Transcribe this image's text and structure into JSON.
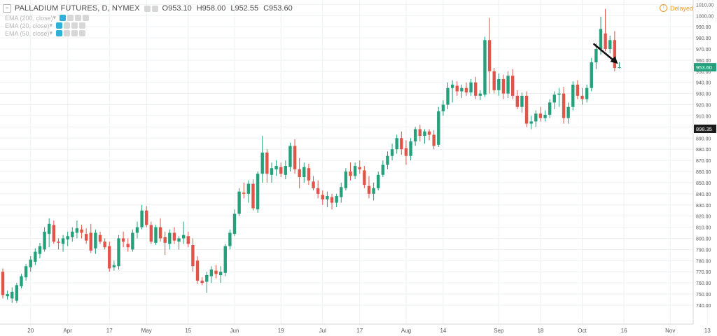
{
  "legend": {
    "collapse_icon": "minus-square-icon",
    "symbol": "PALLADIUM FUTURES, D, NYMEX",
    "open": "O953.10",
    "high": "H958.00",
    "low": "L952.55",
    "close": "C953.60",
    "indicators": [
      {
        "label": "EMA (200, close)"
      },
      {
        "label": "EMA (20, close)"
      },
      {
        "label": "EMA (50, close)"
      }
    ]
  },
  "status": {
    "delayed": "Delayed"
  },
  "colors": {
    "up": "#26a07a",
    "down": "#e0554a",
    "grid": "#eef0f2",
    "axis_text": "#595959",
    "last_price_bg": "#26a07a",
    "crosshair_bg": "#1c1c1c",
    "arrow": "#111111"
  },
  "chart_data": {
    "type": "candlestick",
    "title": "PALLADIUM FUTURES, D, NYMEX",
    "y_axis": {
      "min": 723,
      "max": 1014,
      "ticks": [
        740,
        750,
        760,
        770,
        780,
        790,
        800,
        810,
        820,
        830,
        840,
        850,
        860,
        870,
        880,
        890,
        900,
        910,
        920,
        930,
        940,
        950,
        960,
        970,
        980,
        990,
        1000,
        1010
      ],
      "side": "right"
    },
    "x_axis": {
      "ticks": [
        {
          "label": "20",
          "index": 6
        },
        {
          "label": "Apr",
          "index": 14
        },
        {
          "label": "17",
          "index": 23
        },
        {
          "label": "May",
          "index": 31
        },
        {
          "label": "15",
          "index": 40
        },
        {
          "label": "Jun",
          "index": 50
        },
        {
          "label": "19",
          "index": 60
        },
        {
          "label": "Jul",
          "index": 69
        },
        {
          "label": "17",
          "index": 77
        },
        {
          "label": "Aug",
          "index": 87
        },
        {
          "label": "14",
          "index": 95
        },
        {
          "label": "Sep",
          "index": 107
        },
        {
          "label": "18",
          "index": 116
        },
        {
          "label": "Oct",
          "index": 125
        },
        {
          "label": "16",
          "index": 134
        },
        {
          "label": "Nov",
          "index": 144
        },
        {
          "label": "13",
          "index": 152
        }
      ]
    },
    "last_price_label": "953.60",
    "crosshair_price_label": "898.35",
    "crosshair_price": 898.35,
    "annotation": {
      "type": "arrow",
      "points_to_index": 133,
      "description": "high point"
    },
    "candles": [
      {
        "o": 770,
        "h": 773,
        "l": 746,
        "c": 749
      },
      {
        "o": 748,
        "h": 753,
        "l": 745,
        "c": 750
      },
      {
        "o": 746,
        "h": 756,
        "l": 742,
        "c": 752
      },
      {
        "o": 744,
        "h": 760,
        "l": 742,
        "c": 758
      },
      {
        "o": 757,
        "h": 768,
        "l": 755,
        "c": 766
      },
      {
        "o": 765,
        "h": 777,
        "l": 762,
        "c": 775
      },
      {
        "o": 774,
        "h": 784,
        "l": 770,
        "c": 781
      },
      {
        "o": 779,
        "h": 791,
        "l": 776,
        "c": 788
      },
      {
        "o": 786,
        "h": 796,
        "l": 782,
        "c": 793
      },
      {
        "o": 790,
        "h": 810,
        "l": 788,
        "c": 806
      },
      {
        "o": 804,
        "h": 818,
        "l": 792,
        "c": 813
      },
      {
        "o": 812,
        "h": 816,
        "l": 795,
        "c": 797
      },
      {
        "o": 797,
        "h": 800,
        "l": 790,
        "c": 796
      },
      {
        "o": 795,
        "h": 803,
        "l": 788,
        "c": 800
      },
      {
        "o": 799,
        "h": 806,
        "l": 793,
        "c": 802
      },
      {
        "o": 801,
        "h": 810,
        "l": 797,
        "c": 806
      },
      {
        "o": 805,
        "h": 816,
        "l": 800,
        "c": 809
      },
      {
        "o": 808,
        "h": 812,
        "l": 800,
        "c": 805
      },
      {
        "o": 804,
        "h": 809,
        "l": 795,
        "c": 798
      },
      {
        "o": 805,
        "h": 813,
        "l": 787,
        "c": 789
      },
      {
        "o": 791,
        "h": 808,
        "l": 786,
        "c": 805
      },
      {
        "o": 803,
        "h": 806,
        "l": 795,
        "c": 797
      },
      {
        "o": 797,
        "h": 800,
        "l": 790,
        "c": 792
      },
      {
        "o": 793,
        "h": 797,
        "l": 770,
        "c": 773
      },
      {
        "o": 774,
        "h": 780,
        "l": 771,
        "c": 776
      },
      {
        "o": 775,
        "h": 803,
        "l": 772,
        "c": 800
      },
      {
        "o": 800,
        "h": 806,
        "l": 792,
        "c": 797
      },
      {
        "o": 795,
        "h": 800,
        "l": 788,
        "c": 792
      },
      {
        "o": 790,
        "h": 808,
        "l": 788,
        "c": 805
      },
      {
        "o": 805,
        "h": 815,
        "l": 800,
        "c": 810
      },
      {
        "o": 810,
        "h": 830,
        "l": 808,
        "c": 825
      },
      {
        "o": 825,
        "h": 829,
        "l": 810,
        "c": 812
      },
      {
        "o": 812,
        "h": 815,
        "l": 795,
        "c": 797
      },
      {
        "o": 796,
        "h": 812,
        "l": 794,
        "c": 810
      },
      {
        "o": 810,
        "h": 818,
        "l": 797,
        "c": 800
      },
      {
        "o": 801,
        "h": 806,
        "l": 785,
        "c": 796
      },
      {
        "o": 795,
        "h": 808,
        "l": 790,
        "c": 805
      },
      {
        "o": 805,
        "h": 810,
        "l": 795,
        "c": 798
      },
      {
        "o": 797,
        "h": 802,
        "l": 790,
        "c": 800
      },
      {
        "o": 800,
        "h": 815,
        "l": 795,
        "c": 803
      },
      {
        "o": 802,
        "h": 806,
        "l": 792,
        "c": 795
      },
      {
        "o": 794,
        "h": 800,
        "l": 770,
        "c": 775
      },
      {
        "o": 780,
        "h": 784,
        "l": 759,
        "c": 762
      },
      {
        "o": 762,
        "h": 765,
        "l": 758,
        "c": 760
      },
      {
        "o": 761,
        "h": 770,
        "l": 751,
        "c": 767
      },
      {
        "o": 766,
        "h": 775,
        "l": 760,
        "c": 772
      },
      {
        "o": 771,
        "h": 776,
        "l": 764,
        "c": 768
      },
      {
        "o": 767,
        "h": 775,
        "l": 760,
        "c": 770
      },
      {
        "o": 769,
        "h": 795,
        "l": 766,
        "c": 793
      },
      {
        "o": 793,
        "h": 808,
        "l": 790,
        "c": 805
      },
      {
        "o": 804,
        "h": 826,
        "l": 802,
        "c": 822
      },
      {
        "o": 822,
        "h": 845,
        "l": 820,
        "c": 842
      },
      {
        "o": 841,
        "h": 850,
        "l": 836,
        "c": 840
      },
      {
        "o": 840,
        "h": 852,
        "l": 832,
        "c": 849
      },
      {
        "o": 849,
        "h": 853,
        "l": 825,
        "c": 827
      },
      {
        "o": 826,
        "h": 860,
        "l": 823,
        "c": 858
      },
      {
        "o": 858,
        "h": 892,
        "l": 850,
        "c": 877
      },
      {
        "o": 877,
        "h": 880,
        "l": 850,
        "c": 858
      },
      {
        "o": 857,
        "h": 868,
        "l": 850,
        "c": 863
      },
      {
        "o": 862,
        "h": 870,
        "l": 856,
        "c": 865
      },
      {
        "o": 864,
        "h": 868,
        "l": 855,
        "c": 858
      },
      {
        "o": 857,
        "h": 870,
        "l": 853,
        "c": 865
      },
      {
        "o": 864,
        "h": 886,
        "l": 860,
        "c": 883
      },
      {
        "o": 883,
        "h": 889,
        "l": 858,
        "c": 862
      },
      {
        "o": 862,
        "h": 872,
        "l": 845,
        "c": 855
      },
      {
        "o": 855,
        "h": 868,
        "l": 850,
        "c": 864
      },
      {
        "o": 863,
        "h": 867,
        "l": 848,
        "c": 852
      },
      {
        "o": 851,
        "h": 856,
        "l": 843,
        "c": 845
      },
      {
        "o": 845,
        "h": 852,
        "l": 836,
        "c": 840
      },
      {
        "o": 839,
        "h": 843,
        "l": 830,
        "c": 835
      },
      {
        "o": 835,
        "h": 842,
        "l": 828,
        "c": 838
      },
      {
        "o": 837,
        "h": 840,
        "l": 826,
        "c": 832
      },
      {
        "o": 832,
        "h": 840,
        "l": 828,
        "c": 838
      },
      {
        "o": 837,
        "h": 850,
        "l": 832,
        "c": 846
      },
      {
        "o": 845,
        "h": 863,
        "l": 843,
        "c": 860
      },
      {
        "o": 860,
        "h": 868,
        "l": 852,
        "c": 856
      },
      {
        "o": 856,
        "h": 868,
        "l": 853,
        "c": 865
      },
      {
        "o": 864,
        "h": 870,
        "l": 858,
        "c": 862
      },
      {
        "o": 861,
        "h": 865,
        "l": 845,
        "c": 848
      },
      {
        "o": 847,
        "h": 856,
        "l": 836,
        "c": 840
      },
      {
        "o": 840,
        "h": 850,
        "l": 834,
        "c": 845
      },
      {
        "o": 845,
        "h": 860,
        "l": 843,
        "c": 857
      },
      {
        "o": 857,
        "h": 870,
        "l": 855,
        "c": 866
      },
      {
        "o": 866,
        "h": 878,
        "l": 862,
        "c": 874
      },
      {
        "o": 874,
        "h": 885,
        "l": 870,
        "c": 880
      },
      {
        "o": 880,
        "h": 893,
        "l": 876,
        "c": 890
      },
      {
        "o": 890,
        "h": 896,
        "l": 875,
        "c": 880
      },
      {
        "o": 881,
        "h": 888,
        "l": 866,
        "c": 874
      },
      {
        "o": 874,
        "h": 890,
        "l": 870,
        "c": 887
      },
      {
        "o": 887,
        "h": 900,
        "l": 883,
        "c": 898
      },
      {
        "o": 898,
        "h": 902,
        "l": 887,
        "c": 892
      },
      {
        "o": 892,
        "h": 898,
        "l": 885,
        "c": 896
      },
      {
        "o": 896,
        "h": 898,
        "l": 888,
        "c": 893
      },
      {
        "o": 893,
        "h": 897,
        "l": 880,
        "c": 883
      },
      {
        "o": 884,
        "h": 918,
        "l": 882,
        "c": 914
      },
      {
        "o": 914,
        "h": 924,
        "l": 910,
        "c": 920
      },
      {
        "o": 920,
        "h": 940,
        "l": 916,
        "c": 935
      },
      {
        "o": 935,
        "h": 942,
        "l": 922,
        "c": 938
      },
      {
        "o": 937,
        "h": 941,
        "l": 928,
        "c": 932
      },
      {
        "o": 932,
        "h": 938,
        "l": 926,
        "c": 935
      },
      {
        "o": 935,
        "h": 940,
        "l": 928,
        "c": 931
      },
      {
        "o": 931,
        "h": 943,
        "l": 928,
        "c": 940
      },
      {
        "o": 940,
        "h": 945,
        "l": 925,
        "c": 928
      },
      {
        "o": 928,
        "h": 933,
        "l": 924,
        "c": 930
      },
      {
        "o": 929,
        "h": 981,
        "l": 927,
        "c": 978
      },
      {
        "o": 978,
        "h": 998,
        "l": 930,
        "c": 950
      },
      {
        "o": 950,
        "h": 953,
        "l": 930,
        "c": 933
      },
      {
        "o": 933,
        "h": 948,
        "l": 928,
        "c": 943
      },
      {
        "o": 943,
        "h": 947,
        "l": 925,
        "c": 930
      },
      {
        "o": 930,
        "h": 950,
        "l": 926,
        "c": 946
      },
      {
        "o": 946,
        "h": 952,
        "l": 925,
        "c": 928
      },
      {
        "o": 928,
        "h": 933,
        "l": 916,
        "c": 918
      },
      {
        "o": 918,
        "h": 931,
        "l": 913,
        "c": 928
      },
      {
        "o": 928,
        "h": 932,
        "l": 900,
        "c": 903
      },
      {
        "o": 903,
        "h": 910,
        "l": 898,
        "c": 905
      },
      {
        "o": 905,
        "h": 915,
        "l": 900,
        "c": 912
      },
      {
        "o": 912,
        "h": 918,
        "l": 905,
        "c": 908
      },
      {
        "o": 908,
        "h": 915,
        "l": 905,
        "c": 911
      },
      {
        "o": 911,
        "h": 925,
        "l": 908,
        "c": 922
      },
      {
        "o": 922,
        "h": 932,
        "l": 916,
        "c": 929
      },
      {
        "o": 929,
        "h": 935,
        "l": 918,
        "c": 930
      },
      {
        "o": 930,
        "h": 936,
        "l": 903,
        "c": 908
      },
      {
        "o": 908,
        "h": 922,
        "l": 903,
        "c": 918
      },
      {
        "o": 918,
        "h": 941,
        "l": 915,
        "c": 938
      },
      {
        "o": 938,
        "h": 942,
        "l": 925,
        "c": 928
      },
      {
        "o": 928,
        "h": 935,
        "l": 920,
        "c": 925
      },
      {
        "o": 925,
        "h": 938,
        "l": 922,
        "c": 935
      },
      {
        "o": 935,
        "h": 962,
        "l": 932,
        "c": 958
      },
      {
        "o": 958,
        "h": 975,
        "l": 952,
        "c": 970
      },
      {
        "o": 970,
        "h": 999,
        "l": 965,
        "c": 988
      },
      {
        "o": 984,
        "h": 1006,
        "l": 968,
        "c": 970
      },
      {
        "o": 970,
        "h": 982,
        "l": 966,
        "c": 978
      },
      {
        "o": 978,
        "h": 986,
        "l": 950,
        "c": 953
      },
      {
        "o": 953.1,
        "h": 958.0,
        "l": 952.55,
        "c": 953.6
      }
    ]
  }
}
